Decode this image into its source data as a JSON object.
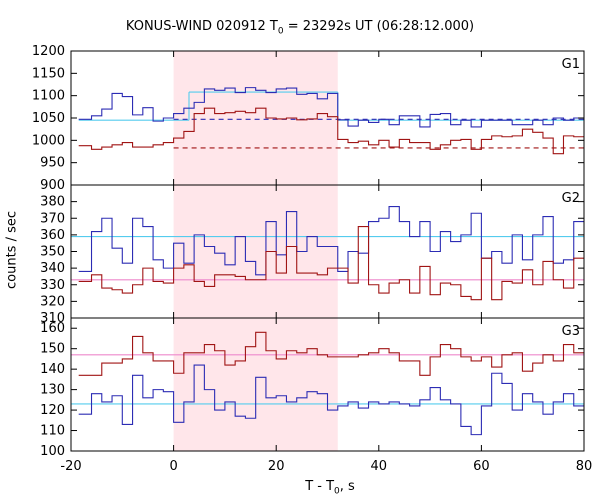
{
  "header": {
    "title_prefix": "KONUS-WIND 020912 T",
    "title_sub": "0",
    "title_suffix": " = 23292s UT (06:28:12.000)"
  },
  "axes": {
    "xlabel_prefix": "T - T",
    "xlabel_sub": "0",
    "xlabel_suffix": ", s",
    "ylabel": "counts / sec"
  },
  "chart_data": {
    "type": "line",
    "title": "KONUS-WIND 020912 T0 = 23292s UT (06:28:12.000)",
    "xlabel": "T - T0, s",
    "ylabel": "counts / sec",
    "xlim": [
      -20,
      80
    ],
    "x_ticks": [
      -20,
      0,
      20,
      40,
      60,
      80
    ],
    "x_tick_labels": [
      "-20",
      "0",
      "20",
      "40",
      "60",
      "80"
    ],
    "highlight_interval": [
      0,
      32
    ],
    "colors": {
      "blue": "#2c2cb4",
      "red": "#a01414",
      "cyan": "#55ccee",
      "pink": "#ee88cc",
      "highlight": "#ffe6ea"
    },
    "bin_edges": [
      -18.5,
      -16,
      -14,
      -12,
      -10,
      -8,
      -6,
      -4,
      -2,
      0,
      2,
      4,
      6,
      8,
      10,
      12,
      14,
      16,
      18,
      20,
      22,
      24,
      26,
      28,
      30,
      32,
      34,
      36,
      38,
      40,
      42,
      44,
      46,
      48,
      50,
      52,
      54,
      56,
      58,
      60,
      62,
      64,
      66,
      68,
      70,
      72,
      74,
      76,
      78,
      80
    ],
    "panels": [
      {
        "label": "G1",
        "ylim": [
          900,
          1200
        ],
        "y_ticks": [
          900,
          950,
          1000,
          1050,
          1100,
          1150,
          1200
        ],
        "y_tick_labels": [
          "900",
          "950",
          "1000",
          "1050",
          "1100",
          "1150",
          "1200"
        ],
        "series": [
          {
            "values": [
              1047,
              1055,
              1070,
              1105,
              1098,
              1057,
              1073,
              1043,
              1050,
              1060,
              1072,
              1085,
              1115,
              1112,
              1117,
              1107,
              1118,
              1112,
              1107,
              1115,
              1117,
              1103,
              1105,
              1093,
              1105,
              1046,
              1032,
              1045,
              1040,
              1047,
              1035,
              1055,
              1055,
              1030,
              1058,
              1060,
              1035,
              1045,
              1030,
              1045,
              1045,
              1045,
              1035,
              1035,
              1045,
              1035,
              1050,
              1045,
              1050
            ]
          },
          {
            "values": [
              988,
              980,
              985,
              990,
              995,
              985,
              985,
              990,
              995,
              1005,
              1020,
              1060,
              1072,
              1060,
              1062,
              1065,
              1062,
              1072,
              1050,
              1048,
              1050,
              1046,
              1048,
              1060,
              1053,
              1002,
              995,
              998,
              990,
              1000,
              985,
              1002,
              995,
              995,
              980,
              990,
              1000,
              1002,
              980,
              1002,
              1010,
              1008,
              1010,
              1025,
              1018,
              1005,
              970,
              1010,
              1008
            ]
          }
        ],
        "reference_lines": [
          {
            "x_range": [
              -18.5,
              3
            ],
            "y": 1045
          },
          {
            "x_range": [
              3,
              32
            ],
            "y": 1108
          },
          {
            "x_range": [
              32,
              80
            ],
            "y": 1045
          },
          {
            "x_range": [
              0,
              80
            ],
            "y": 1047,
            "style": "dashed"
          },
          {
            "x_range": [
              0,
              80
            ],
            "y": 983,
            "style": "dashed"
          }
        ]
      },
      {
        "label": "G2",
        "ylim": [
          310,
          390
        ],
        "y_ticks": [
          310,
          320,
          330,
          340,
          350,
          360,
          370,
          380
        ],
        "y_tick_labels": [
          "310",
          "320",
          "330",
          "340",
          "350",
          "360",
          "370",
          "380"
        ],
        "series": [
          {
            "values": [
              338,
              362,
              370,
              352,
              343,
              370,
              365,
              345,
              340,
              355,
              343,
              360,
              353,
              349,
              342,
              359,
              344,
              336,
              368,
              348,
              374,
              350,
              359,
              353,
              353,
              338,
              350,
              349,
              368,
              370,
              377,
              368,
              359,
              368,
              350,
              362,
              356,
              360,
              373,
              346,
              350,
              343,
              360,
              345,
              360,
              371,
              343,
              345,
              368
            ]
          },
          {
            "values": [
              332,
              336,
              328,
              327,
              325,
              330,
              340,
              332,
              331,
              340,
              342,
              332,
              329,
              336,
              336,
              335,
              333,
              333,
              350,
              337,
              353,
              337,
              337,
              336,
              340,
              340,
              331,
              365,
              330,
              325,
              331,
              333,
              325,
              341,
              324,
              331,
              330,
              323,
              321,
              346,
              321,
              332,
              331,
              339,
              330,
              344,
              333,
              328,
              346
            ]
          }
        ],
        "reference_lines": [
          {
            "x_range": [
              -20,
              80
            ],
            "y": 359
          },
          {
            "x_range": [
              -20,
              80
            ],
            "y": 333
          }
        ]
      },
      {
        "label": "G3",
        "ylim": [
          100,
          165
        ],
        "y_ticks": [
          100,
          110,
          120,
          130,
          140,
          150,
          160
        ],
        "y_tick_labels": [
          "100",
          "110",
          "120",
          "130",
          "140",
          "150",
          "160"
        ],
        "series": [
          {
            "values": [
              118,
              128,
              124,
              127,
              113,
              137,
              126,
              130,
              129,
              114,
              124,
              142,
              130,
              120,
              124,
              117,
              116,
              136,
              126,
              127,
              124,
              126,
              129,
              128,
              120,
              122,
              124,
              121,
              124,
              123,
              124,
              123,
              122,
              125,
              131,
              125,
              123,
              112,
              108,
              122,
              138,
              133,
              120,
              128,
              124,
              118,
              124,
              128,
              122
            ]
          },
          {
            "values": [
              137,
              137,
              143,
              143,
              145,
              156,
              148,
              144,
              144,
              138,
              148,
              148,
              152,
              149,
              142,
              144,
              151,
              158,
              149,
              145,
              149,
              148,
              150,
              147,
              146,
              146,
              146,
              147,
              148,
              150,
              148,
              144,
              144,
              137,
              146,
              152,
              150,
              146,
              144,
              146,
              141,
              147,
              148,
              139,
              143,
              147,
              144,
              152,
              148
            ]
          }
        ],
        "reference_lines": [
          {
            "x_range": [
              -20,
              80
            ],
            "y": 123
          },
          {
            "x_range": [
              -20,
              80
            ],
            "y": 147
          }
        ]
      }
    ]
  }
}
